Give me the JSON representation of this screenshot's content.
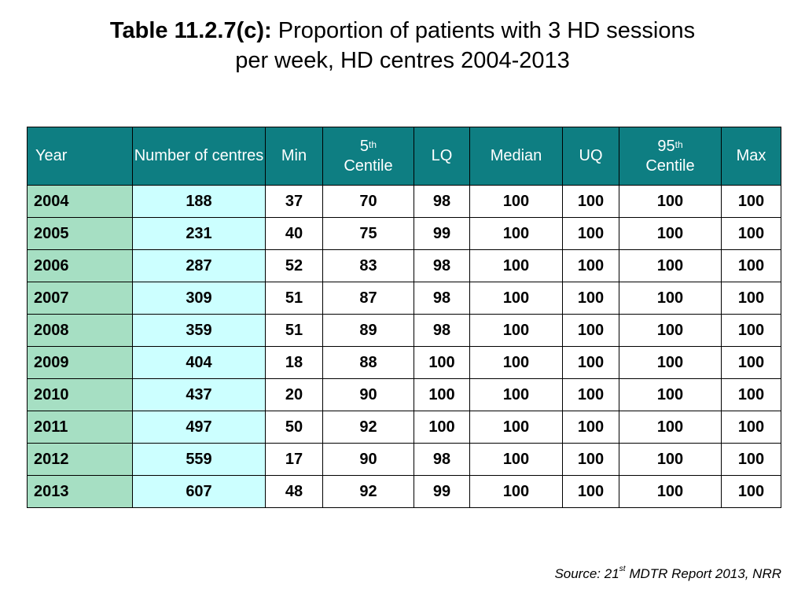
{
  "title": {
    "label": "Table 11.2.7(c):",
    "line1": "Proportion of patients with 3 HD sessions",
    "line2": "per week, HD centres 2004-2013"
  },
  "table": {
    "headers": [
      "Year",
      "Number of centres",
      "Min",
      {
        "base": "5",
        "sup": "th",
        "after": "Centile"
      },
      "LQ",
      "Median",
      "UQ",
      {
        "base": "95",
        "sup": "th",
        "after": "Centile"
      },
      "Max"
    ],
    "rows": [
      [
        2004,
        188,
        37,
        70,
        98,
        100,
        100,
        100,
        100
      ],
      [
        2005,
        231,
        40,
        75,
        99,
        100,
        100,
        100,
        100
      ],
      [
        2006,
        287,
        52,
        83,
        98,
        100,
        100,
        100,
        100
      ],
      [
        2007,
        309,
        51,
        87,
        98,
        100,
        100,
        100,
        100
      ],
      [
        2008,
        359,
        51,
        89,
        98,
        100,
        100,
        100,
        100
      ],
      [
        2009,
        404,
        18,
        88,
        100,
        100,
        100,
        100,
        100
      ],
      [
        2010,
        437,
        20,
        90,
        100,
        100,
        100,
        100,
        100
      ],
      [
        2011,
        497,
        50,
        92,
        100,
        100,
        100,
        100,
        100
      ],
      [
        2012,
        559,
        17,
        90,
        98,
        100,
        100,
        100,
        100
      ],
      [
        2013,
        607,
        48,
        92,
        99,
        100,
        100,
        100,
        100
      ]
    ]
  },
  "source": {
    "before": "Source: 21",
    "sup": "st",
    "after": " MDTR Report 2013, NRR"
  }
}
